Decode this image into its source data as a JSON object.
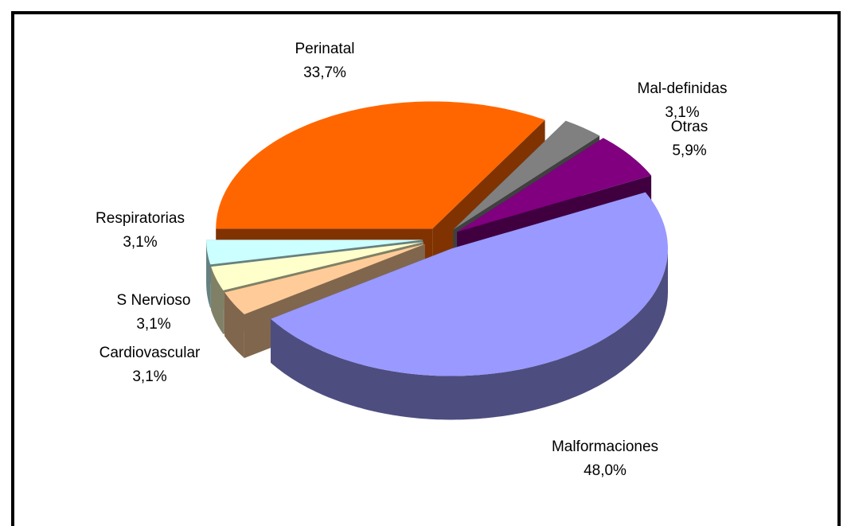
{
  "chart_data": {
    "type": "pie3d",
    "categories": [
      "Perinatal",
      "Mal-definidas",
      "Otras",
      "Malformaciones",
      "Cardiovascular",
      "S Nervioso",
      "Respiratorias"
    ],
    "values": [
      33.7,
      3.1,
      5.9,
      48.0,
      3.1,
      3.1,
      3.1
    ],
    "value_labels": [
      "33,7%",
      "3,1%",
      "5,9%",
      "48,0%",
      "3,1%",
      "3,1%",
      "3,1%"
    ],
    "colors": [
      "#ff6600",
      "#808080",
      "#800080",
      "#9999ff",
      "#ffcc99",
      "#ffffcc",
      "#ccffff"
    ]
  }
}
